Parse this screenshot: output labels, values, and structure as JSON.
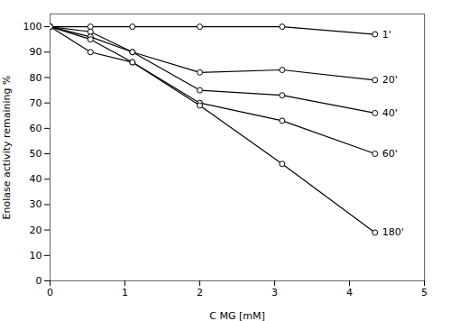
{
  "chart_data": {
    "type": "line",
    "xlabel": "C MG [mM]",
    "ylabel": "Enolase activity remaining %",
    "x": [
      0,
      0.54,
      1.1,
      2.0,
      3.1,
      4.34
    ],
    "series": [
      {
        "name": "1'",
        "color": "#000000",
        "values": [
          100,
          100,
          100,
          100,
          100,
          97
        ]
      },
      {
        "name": "20'",
        "color": "#000000",
        "values": [
          100,
          98,
          90,
          82,
          83,
          79
        ]
      },
      {
        "name": "40'",
        "color": "#000000",
        "values": [
          100,
          96,
          90,
          75,
          73,
          66
        ]
      },
      {
        "name": "60'",
        "color": "#000000",
        "values": [
          100,
          95,
          86,
          70,
          63,
          50
        ]
      },
      {
        "name": "180'",
        "color": "#000000",
        "values": [
          100,
          90,
          86,
          69,
          46,
          19
        ]
      }
    ],
    "xlim": [
      0,
      5
    ],
    "ylim": [
      0,
      105
    ],
    "xticks": [
      0,
      1,
      2,
      3,
      4,
      5
    ],
    "yticks": [
      0,
      10,
      20,
      30,
      40,
      50,
      60,
      70,
      80,
      90,
      100
    ],
    "marker": "circle",
    "grid": false
  }
}
